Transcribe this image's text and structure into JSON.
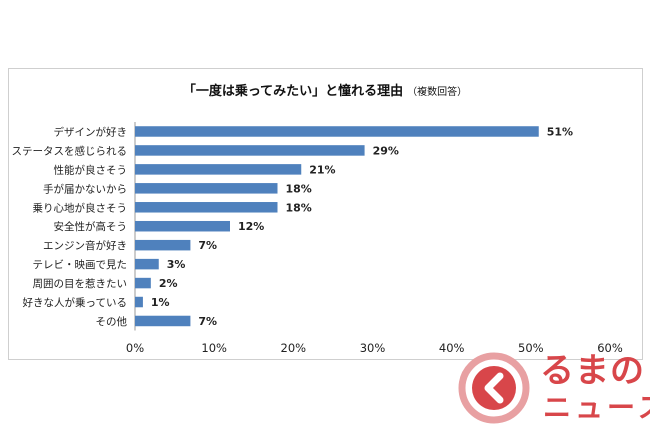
{
  "chart_data": {
    "type": "bar",
    "orientation": "horizontal",
    "title": "「一度は乗ってみたい」と憧れる理由",
    "subtitle": "（複数回答）",
    "categories": [
      "デザインが好き",
      "ステータスを感じられる",
      "性能が良さそう",
      "手が届かないから",
      "乗り心地が良さそう",
      "安全性が高そう",
      "エンジン音が好き",
      "テレビ・映画で見た",
      "周囲の目を惹きたい",
      "好きな人が乗っている",
      "その他"
    ],
    "values": [
      51,
      29,
      21,
      18,
      18,
      12,
      7,
      3,
      2,
      1,
      7
    ],
    "value_labels": [
      "51%",
      "29%",
      "21%",
      "18%",
      "18%",
      "12%",
      "7%",
      "3%",
      "2%",
      "1%",
      "7%"
    ],
    "xlim": [
      0,
      60
    ],
    "x_ticks": [
      "0%",
      "10%",
      "20%",
      "30%",
      "40%",
      "50%",
      "60%"
    ],
    "bar_color": "#4f81bd",
    "grid": false
  },
  "logo": {
    "text": "るまの",
    "sub": "ニュース",
    "color": "#d8464a"
  }
}
